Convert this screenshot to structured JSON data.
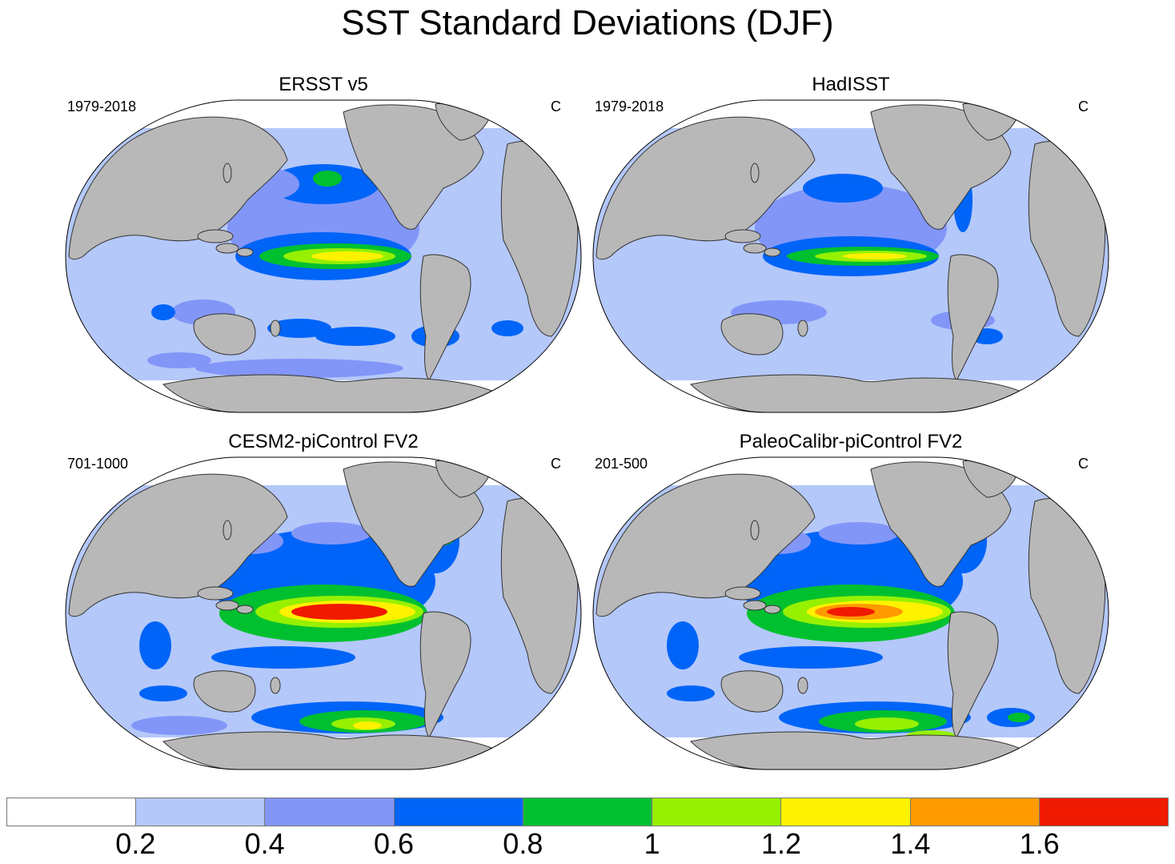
{
  "title": "SST Standard Deviations (DJF)",
  "panels": [
    {
      "name": "ERSST v5",
      "years": "1979-2018",
      "unit": "C"
    },
    {
      "name": "HadISST",
      "years": "1979-2018",
      "unit": "C"
    },
    {
      "name": "CESM2-piControl FV2",
      "years": "701-1000",
      "unit": "C"
    },
    {
      "name": "PaleoCalibr-piControl FV2",
      "years": "201-500",
      "unit": "C"
    }
  ],
  "colorbar": {
    "colors": [
      "#ffffff",
      "#b4c8fa",
      "#8296f8",
      "#0064f8",
      "#00c030",
      "#96f000",
      "#fff200",
      "#ff9a00",
      "#f01a00"
    ],
    "labels": [
      "0.2",
      "0.4",
      "0.6",
      "0.8",
      "1",
      "1.2",
      "1.4",
      "1.6"
    ]
  },
  "colors": {
    "land": "#b8b8b8",
    "ocean_base": "#b4c8fa",
    "coast": "#333333"
  }
}
